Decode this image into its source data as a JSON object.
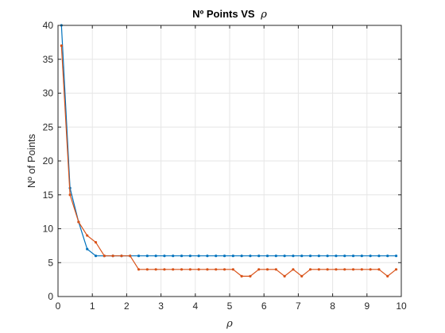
{
  "chart_data": {
    "type": "line",
    "title": "Nº Points VS",
    "title_symbol": "ρ",
    "xlabel": "ρ",
    "ylabel": "Nº of Points",
    "xlim": [
      0,
      10
    ],
    "ylim": [
      0,
      40
    ],
    "xticks": [
      "0",
      "1",
      "2",
      "3",
      "4",
      "5",
      "6",
      "7",
      "8",
      "9",
      "10"
    ],
    "yticks": [
      "0",
      "5",
      "10",
      "15",
      "20",
      "25",
      "30",
      "35",
      "40"
    ],
    "grid": true,
    "x": [
      0.1,
      0.35,
      0.6,
      0.85,
      1.1,
      1.35,
      1.6,
      1.85,
      2.1,
      2.35,
      2.6,
      2.85,
      3.1,
      3.35,
      3.6,
      3.85,
      4.1,
      4.35,
      4.6,
      4.85,
      5.1,
      5.35,
      5.6,
      5.85,
      6.1,
      6.35,
      6.6,
      6.85,
      7.1,
      7.35,
      7.6,
      7.85,
      8.1,
      8.35,
      8.6,
      8.85,
      9.1,
      9.35,
      9.6,
      9.85
    ],
    "series": [
      {
        "color": "#0072bd",
        "values": [
          40,
          16,
          11,
          7,
          6,
          6,
          6,
          6,
          6,
          6,
          6,
          6,
          6,
          6,
          6,
          6,
          6,
          6,
          6,
          6,
          6,
          6,
          6,
          6,
          6,
          6,
          6,
          6,
          6,
          6,
          6,
          6,
          6,
          6,
          6,
          6,
          6,
          6,
          6,
          6
        ]
      },
      {
        "color": "#d95319",
        "values": [
          37,
          15,
          11,
          9,
          8,
          6,
          6,
          6,
          6,
          4,
          4,
          4,
          4,
          4,
          4,
          4,
          4,
          4,
          4,
          4,
          4,
          3,
          3,
          4,
          4,
          4,
          3,
          4,
          3,
          4,
          4,
          4,
          4,
          4,
          4,
          4,
          4,
          4,
          3,
          4
        ]
      }
    ]
  }
}
